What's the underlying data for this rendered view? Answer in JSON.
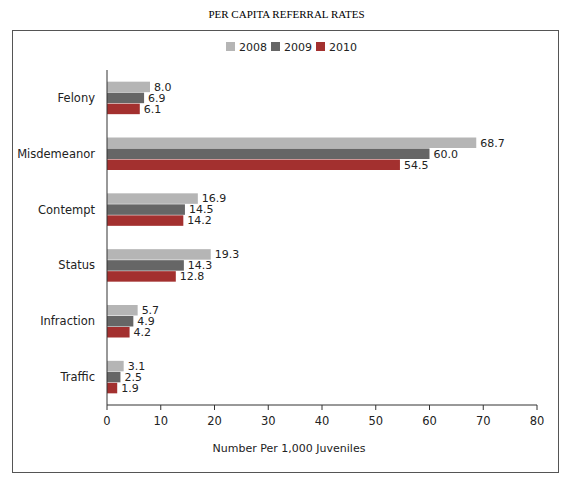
{
  "chart_data": {
    "type": "bar",
    "title": "PER CAPITA REFERRAL RATES",
    "orientation": "horizontal",
    "categories": [
      "Felony",
      "Misdemeanor",
      "Contempt",
      "Status",
      "Infraction",
      "Traffic"
    ],
    "series": [
      {
        "name": "2008",
        "color": "#b5b5b5",
        "values": [
          8.0,
          68.7,
          16.9,
          19.3,
          5.7,
          3.1
        ],
        "value_labels": [
          "8.0",
          "68.7",
          "16.9",
          "19.3",
          "5.7",
          "3.1"
        ]
      },
      {
        "name": "2009",
        "color": "#666666",
        "values": [
          6.9,
          60.0,
          14.5,
          14.3,
          4.9,
          2.5
        ],
        "value_labels": [
          "6.9",
          "60.0",
          "14.5",
          "14.3",
          "4.9",
          "2.5"
        ]
      },
      {
        "name": "2010",
        "color": "#a3302f",
        "values": [
          6.1,
          54.5,
          14.2,
          12.8,
          4.2,
          1.9
        ],
        "value_labels": [
          "6.1",
          "54.5",
          "14.2",
          "12.8",
          "4.2",
          "1.9"
        ]
      }
    ],
    "xlabel": "Number Per 1,000 Juveniles",
    "xlim": [
      0,
      80
    ],
    "xticks": [
      0,
      10,
      20,
      30,
      40,
      50,
      60,
      70,
      80
    ],
    "grid": false,
    "legend": "top",
    "data_labels": true
  }
}
